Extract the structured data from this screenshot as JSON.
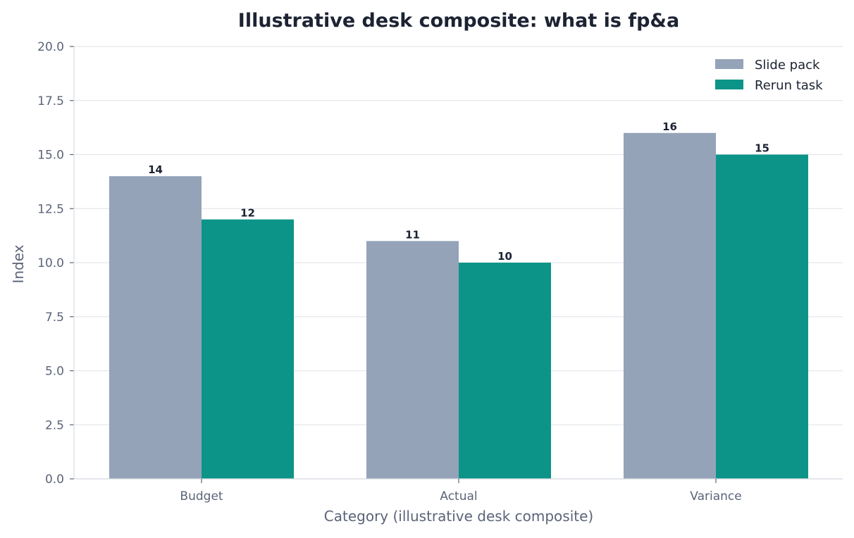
{
  "chart_data": {
    "type": "bar",
    "title": "Illustrative desk composite: what is fp&a",
    "xlabel": "Category (illustrative desk composite)",
    "ylabel": "Index",
    "categories": [
      "Budget",
      "Actual",
      "Variance"
    ],
    "series": [
      {
        "name": "Slide pack",
        "color": "#94a3b8",
        "values": [
          14,
          11,
          16
        ]
      },
      {
        "name": "Rerun task",
        "color": "#0d9488",
        "values": [
          12,
          10,
          15
        ]
      }
    ],
    "ylim": [
      0,
      20
    ],
    "yticks": [
      "0.0",
      "2.5",
      "5.0",
      "7.5",
      "10.0",
      "12.5",
      "15.0",
      "17.5",
      "20.0"
    ],
    "grid": true,
    "legend_position": "top-right"
  }
}
